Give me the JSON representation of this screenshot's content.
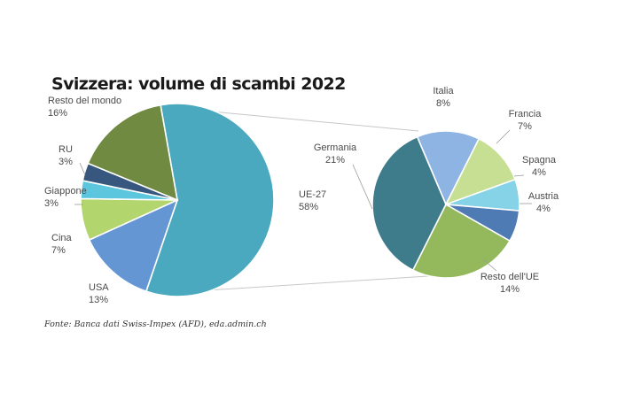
{
  "title": "Svizzera: volume di scambi 2022",
  "source": "Fonte: Banca dati Swiss-Impex (AFD), eda.admin.ch",
  "chart_data": [
    {
      "type": "pie",
      "slices": [
        {
          "label": "UE-27",
          "value": 58,
          "value_label": "58%",
          "color": "#4aa8bf"
        },
        {
          "label": "USA",
          "value": 13,
          "value_label": "13%",
          "color": "#6596d4"
        },
        {
          "label": "Cina",
          "value": 7,
          "value_label": "7%",
          "color": "#b2d56d"
        },
        {
          "label": "Giappone",
          "value": 3,
          "value_label": "3%",
          "color": "#5bc6de"
        },
        {
          "label": "RU",
          "value": 3,
          "value_label": "3%",
          "color": "#37577e"
        },
        {
          "label": "Resto del mondo",
          "value": 16,
          "value_label": "16%",
          "color": "#708a42"
        }
      ]
    },
    {
      "type": "pie",
      "slices": [
        {
          "label": "Italia",
          "value": 8,
          "value_label": "8%",
          "color": "#8eb4e3"
        },
        {
          "label": "Francia",
          "value": 7,
          "value_label": "7%",
          "color": "#c7df93"
        },
        {
          "label": "Spagna",
          "value": 4,
          "value_label": "4%",
          "color": "#86d2e6"
        },
        {
          "label": "Austria",
          "value": 4,
          "value_label": "4%",
          "color": "#4e7bb3"
        },
        {
          "label": "Resto dell'UE",
          "value": 14,
          "value_label": "14%",
          "color": "#93b95c"
        },
        {
          "label": "Germania",
          "value": 21,
          "value_label": "21%",
          "color": "#3e7c8b"
        }
      ]
    }
  ]
}
